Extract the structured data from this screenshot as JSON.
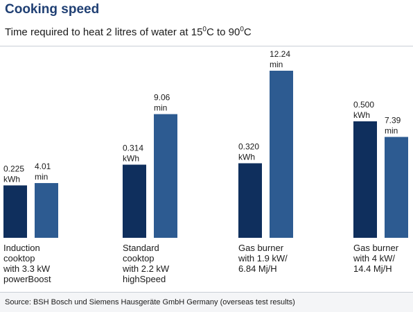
{
  "title": "Cooking speed",
  "subtitle": {
    "before": "Time required to heat 2 litres of water at 15",
    "sup1": "0",
    "middle": "C to 90",
    "sup2": "0",
    "after": "C"
  },
  "source": "Source: BSH Bosch und Siemens Hausgeräte GmbH Germany (overseas test results)",
  "colors": {
    "energy": "#0f2f5d",
    "time": "#2d5b91",
    "title": "#1f3f73"
  },
  "chart_data": {
    "type": "bar",
    "categories": [
      [
        "Induction",
        "cooktop",
        "with 3.3 kW",
        "powerBoost"
      ],
      [
        "Standard",
        "cooktop",
        "with 2.2 kW",
        "highSpeed"
      ],
      [
        "Gas burner",
        "with 1.9 kW/",
        "6.84 Mj/H"
      ],
      [
        "Gas burner",
        "with 4 kW/",
        "14.4 Mj/H"
      ]
    ],
    "series": [
      {
        "unit": "kWh",
        "values": [
          0.225,
          0.314,
          0.32,
          0.5
        ],
        "labels": [
          "0.225",
          "0.314",
          "0.320",
          "0.500"
        ]
      },
      {
        "unit": "min",
        "values": [
          4.01,
          9.06,
          12.24,
          7.39
        ],
        "labels": [
          "4.01",
          "9.06",
          "12.24",
          "7.39"
        ]
      }
    ],
    "grid": false,
    "legend": "none"
  }
}
